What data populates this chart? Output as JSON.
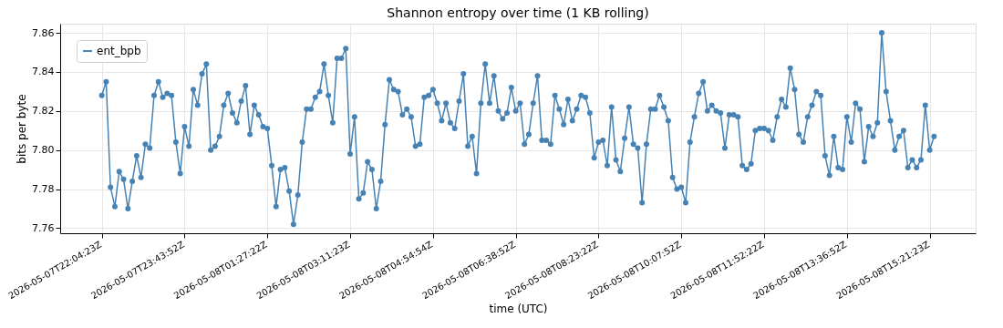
{
  "chart_data": {
    "type": "line",
    "title": "Shannon entropy over time (1 KB rolling)",
    "xlabel": "time (UTC)",
    "ylabel": "bits per byte",
    "categories": [
      "2026-05-07T22:04:23Z",
      null,
      null,
      null,
      null,
      null,
      null,
      null,
      null,
      null,
      null,
      null,
      null,
      null,
      null,
      null,
      null,
      null,
      null,
      "2026-05-07T23:43:52Z",
      null,
      null,
      null,
      null,
      null,
      null,
      null,
      null,
      null,
      null,
      null,
      null,
      null,
      null,
      null,
      null,
      null,
      null,
      "2026-05-08T01:27:22Z",
      null,
      null,
      null,
      null,
      null,
      null,
      null,
      null,
      null,
      null,
      null,
      null,
      null,
      null,
      null,
      null,
      null,
      null,
      "2026-05-08T03:11:23Z",
      null,
      null,
      null,
      null,
      null,
      null,
      null,
      null,
      null,
      null,
      null,
      null,
      null,
      null,
      null,
      null,
      null,
      null,
      "2026-05-08T04:54:54Z",
      null,
      null,
      null,
      null,
      null,
      null,
      null,
      null,
      null,
      null,
      null,
      null,
      null,
      null,
      null,
      null,
      null,
      null,
      "2026-05-08T06:38:52Z",
      null,
      null,
      null,
      null,
      null,
      null,
      null,
      null,
      null,
      null,
      null,
      null,
      null,
      null,
      null,
      null,
      null,
      null,
      "2026-05-08T08:23:22Z",
      null,
      null,
      null,
      null,
      null,
      null,
      null,
      null,
      null,
      null,
      null,
      null,
      null,
      null,
      null,
      null,
      null,
      null,
      "2026-05-08T10:07:52Z",
      null,
      null,
      null,
      null,
      null,
      null,
      null,
      null,
      null,
      null,
      null,
      null,
      null,
      null,
      null,
      null,
      null,
      null,
      "2026-05-08T11:52:22Z",
      null,
      null,
      null,
      null,
      null,
      null,
      null,
      null,
      null,
      null,
      null,
      null,
      null,
      null,
      null,
      null,
      null,
      null,
      "2026-05-08T13:36:52Z",
      null,
      null,
      null,
      null,
      null,
      null,
      null,
      null,
      null,
      null,
      null,
      null,
      null,
      null,
      null,
      null,
      null,
      null,
      "2026-05-08T15:21:23Z",
      null
    ],
    "series": [
      {
        "name": "ent_bpb",
        "color": "#4682b4",
        "values": [
          7.828,
          7.835,
          7.781,
          7.771,
          7.789,
          7.785,
          7.77,
          7.784,
          7.797,
          7.786,
          7.803,
          7.801,
          7.828,
          7.835,
          7.827,
          7.829,
          7.828,
          7.804,
          7.788,
          7.812,
          7.802,
          7.831,
          7.823,
          7.839,
          7.844,
          7.8,
          7.802,
          7.807,
          7.823,
          7.829,
          7.819,
          7.814,
          7.825,
          7.833,
          7.808,
          7.823,
          7.818,
          7.812,
          7.811,
          7.792,
          7.771,
          7.79,
          7.791,
          7.779,
          7.762,
          7.777,
          7.804,
          7.821,
          7.821,
          7.827,
          7.83,
          7.844,
          7.828,
          7.814,
          7.847,
          7.847,
          7.852,
          7.798,
          7.817,
          7.775,
          7.778,
          7.794,
          7.79,
          7.77,
          7.784,
          7.813,
          7.836,
          7.831,
          7.83,
          7.818,
          7.821,
          7.817,
          7.802,
          7.803,
          7.827,
          7.828,
          7.831,
          7.824,
          7.815,
          7.824,
          7.814,
          7.811,
          7.825,
          7.839,
          7.802,
          7.807,
          7.788,
          7.824,
          7.844,
          7.824,
          7.838,
          7.82,
          7.816,
          7.819,
          7.832,
          7.82,
          7.824,
          7.803,
          7.808,
          7.824,
          7.838,
          7.805,
          7.805,
          7.803,
          7.828,
          7.821,
          7.813,
          7.826,
          7.815,
          7.821,
          7.828,
          7.827,
          7.819,
          7.796,
          7.804,
          7.805,
          7.792,
          7.822,
          7.795,
          7.789,
          7.806,
          7.822,
          7.803,
          7.801,
          7.773,
          7.803,
          7.821,
          7.821,
          7.828,
          7.822,
          7.815,
          7.786,
          7.78,
          7.781,
          7.773,
          7.804,
          7.817,
          7.829,
          7.835,
          7.82,
          7.823,
          7.82,
          7.819,
          7.801,
          7.818,
          7.818,
          7.817,
          7.792,
          7.79,
          7.793,
          7.81,
          7.811,
          7.811,
          7.81,
          7.805,
          7.817,
          7.826,
          7.822,
          7.842,
          7.831,
          7.808,
          7.804,
          7.817,
          7.823,
          7.83,
          7.828,
          7.797,
          7.787,
          7.807,
          7.791,
          7.79,
          7.817,
          7.804,
          7.824,
          7.821,
          7.794,
          7.812,
          7.807,
          7.814,
          7.86,
          7.83,
          7.815,
          7.8,
          7.807,
          7.81,
          7.791,
          7.795,
          7.791,
          7.795,
          7.823,
          7.8,
          7.807
        ]
      }
    ],
    "ylim": [
      7.7574,
      7.8647
    ],
    "yticks": [
      7.76,
      7.78,
      {
        "value": 7.8,
        "label": "7.80"
      },
      7.82,
      7.84,
      7.86
    ],
    "grid": true,
    "legend": "top left",
    "marker": "circle",
    "line_style": "solid"
  }
}
